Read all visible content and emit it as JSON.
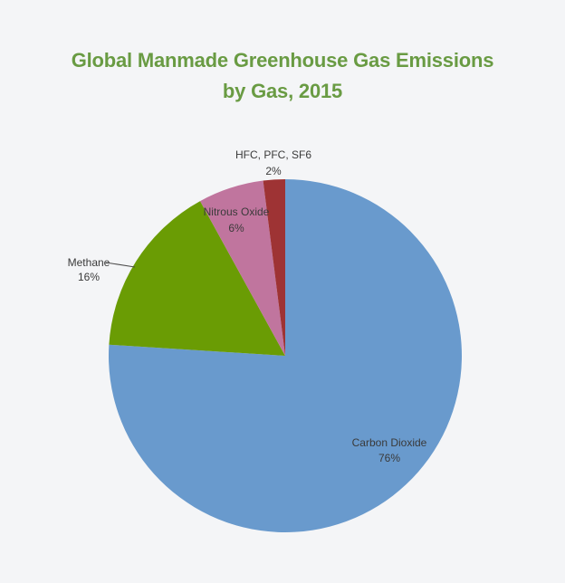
{
  "background_color": "#f4f5f7",
  "title": {
    "line1": "Global Manmade Greenhouse Gas Emissions",
    "line2": "by Gas, 2015",
    "color": "#699b43"
  },
  "chart_data": {
    "type": "pie",
    "title": "Global Manmade Greenhouse Gas Emissions by Gas, 2015",
    "start_angle_deg": 0,
    "direction": "clockwise",
    "legend": "none",
    "slices": [
      {
        "id": "carbon-dioxide",
        "label": "Carbon Dioxide",
        "value_pct": 76,
        "pct_text": "76%",
        "color": "#699acd",
        "label_placement": "inside"
      },
      {
        "id": "methane",
        "label": "Methane",
        "value_pct": 16,
        "pct_text": "16%",
        "color": "#6a9c04",
        "label_placement": "outside-left-with-leader"
      },
      {
        "id": "nitrous-oxide",
        "label": "Nitrous Oxide",
        "value_pct": 6,
        "pct_text": "6%",
        "color": "#c0759e",
        "label_placement": "inside"
      },
      {
        "id": "hfc-pfc-sf6",
        "label": "HFC, PFC, SF6",
        "value_pct": 2,
        "pct_text": "2%",
        "color": "#9e3334",
        "label_placement": "outside-top"
      }
    ]
  }
}
